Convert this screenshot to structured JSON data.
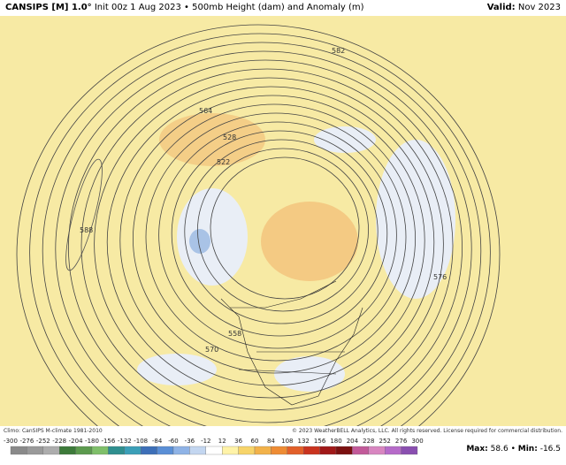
{
  "header": {
    "model": "CANSIPS [M] 1.0°",
    "description": "Init 00z 1 Aug 2023 • 500mb Height (dam) and Anomaly (m)",
    "valid_label": "Valid:",
    "valid": "Nov 2023"
  },
  "map": {
    "contour_labels": [
      "564",
      "528",
      "522",
      "588",
      "576",
      "558",
      "570",
      "582"
    ]
  },
  "footer": {
    "climo": "Climo: CanSIPS M-climate 1981-2010",
    "copyright": "© 2023 WeatherBELL Analytics, LLC. All rights reserved. License required for commercial distribution.",
    "colorbar_ticks": [
      -300,
      -276,
      -252,
      -228,
      -204,
      -180,
      -156,
      -132,
      -108,
      -84,
      -60,
      -36,
      -12,
      12,
      36,
      60,
      84,
      108,
      132,
      156,
      180,
      204,
      228,
      252,
      276,
      300
    ],
    "stats": {
      "max_label": "Max:",
      "max": 58.6,
      "separator": "•",
      "min_label": "Min:",
      "min": -16.5
    }
  }
}
